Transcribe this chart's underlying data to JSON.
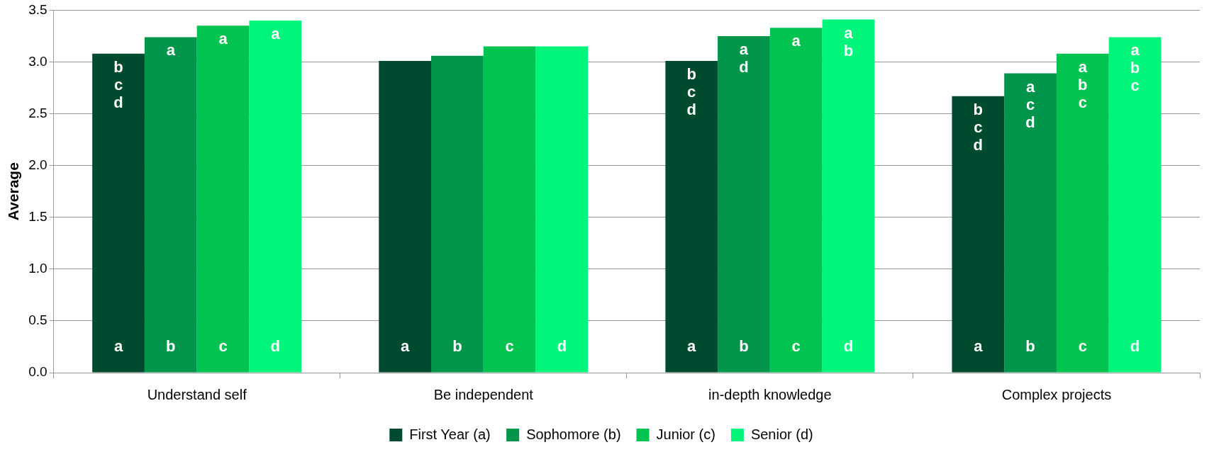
{
  "chart_data": {
    "type": "bar",
    "ylabel": "Average",
    "categories": [
      "Understand self",
      "Be independent",
      "in-depth knowledge",
      "Complex projects"
    ],
    "series": [
      {
        "name": "First Year (a)",
        "color": "#004b2f",
        "values": [
          3.08,
          3.01,
          3.01,
          2.67
        ],
        "value_labels": [
          "b\nc\nd",
          null,
          "b\nc\nd",
          "b\nc\nd"
        ]
      },
      {
        "name": "Sophomore (b)",
        "color": "#00954a",
        "values": [
          3.24,
          3.06,
          3.25,
          2.89
        ],
        "value_labels": [
          "a",
          null,
          "a\nd",
          "a\nc\nd"
        ]
      },
      {
        "name": "Junior (c)",
        "color": "#00c350",
        "values": [
          3.35,
          3.15,
          3.33,
          3.08
        ],
        "value_labels": [
          "a",
          null,
          "a",
          "a\nb\nc"
        ]
      },
      {
        "name": "Senior (d)",
        "color": "#00f57a",
        "values": [
          3.4,
          3.15,
          3.41,
          3.24
        ],
        "value_labels": [
          "a",
          null,
          "a\nb",
          "a\nb\nc"
        ]
      }
    ],
    "annotations": [
      "a",
      "b",
      "c",
      "d",
      "a",
      "b",
      "c",
      "d",
      "a",
      "b",
      "c",
      "d",
      "a",
      "b",
      "c",
      "d"
    ],
    "ylim": [
      0,
      3.5
    ],
    "yticks": [
      {
        "value": 0,
        "label": "0.0"
      },
      {
        "value": 0.5,
        "label": "0.5"
      },
      {
        "value": 1,
        "label": "1.0"
      },
      {
        "value": 1.5,
        "label": "1.5"
      },
      {
        "value": 2,
        "label": "2.0"
      },
      {
        "value": 2.5,
        "label": "2.5"
      },
      {
        "value": 3,
        "label": "3.0"
      },
      {
        "value": 3.5,
        "label": "3.5"
      }
    ],
    "grid": "y",
    "legend": "bottom"
  }
}
